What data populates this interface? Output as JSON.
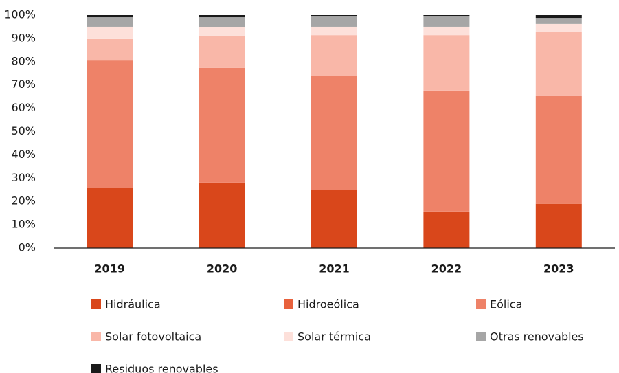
{
  "chart_data": {
    "type": "stacked_bar",
    "categories": [
      "2019",
      "2020",
      "2021",
      "2022",
      "2023"
    ],
    "series": [
      {
        "name": "Hidráulica",
        "color": "#d9471b",
        "values": [
          25.7,
          28.0,
          24.8,
          15.6,
          18.9
        ]
      },
      {
        "name": "Hidroeólica",
        "color": "#e8613c",
        "values": [
          0.1,
          0.1,
          0.1,
          0.1,
          0.1
        ]
      },
      {
        "name": "Eólica",
        "color": "#ee8268",
        "values": [
          54.7,
          49.2,
          49.1,
          51.9,
          46.2
        ]
      },
      {
        "name": "Solar fotovoltaica",
        "color": "#f9b7a8",
        "values": [
          9.2,
          13.9,
          17.4,
          23.8,
          27.7
        ]
      },
      {
        "name": "Solar térmica",
        "color": "#fde0da",
        "values": [
          5.3,
          3.5,
          3.6,
          3.6,
          3.3
        ]
      },
      {
        "name": "Otras renovables",
        "color": "#a6a6a6",
        "values": [
          4.1,
          4.4,
          4.4,
          4.4,
          2.6
        ]
      },
      {
        "name": "Residuos renovables",
        "color": "#1a1a1a",
        "values": [
          0.9,
          0.9,
          0.6,
          0.6,
          1.2
        ]
      }
    ],
    "ylim": [
      0,
      100
    ],
    "yticks": [
      {
        "value": 0,
        "label": "0%"
      },
      {
        "value": 10,
        "label": "10%"
      },
      {
        "value": 20,
        "label": "20%"
      },
      {
        "value": 30,
        "label": "30%"
      },
      {
        "value": 40,
        "label": "40%"
      },
      {
        "value": 50,
        "label": "50%"
      },
      {
        "value": 60,
        "label": "60%"
      },
      {
        "value": 70,
        "label": "70%"
      },
      {
        "value": 80,
        "label": "80%"
      },
      {
        "value": 90,
        "label": "90%"
      },
      {
        "value": 100,
        "label": "100%"
      }
    ],
    "grid": false,
    "legend": "bottom"
  }
}
